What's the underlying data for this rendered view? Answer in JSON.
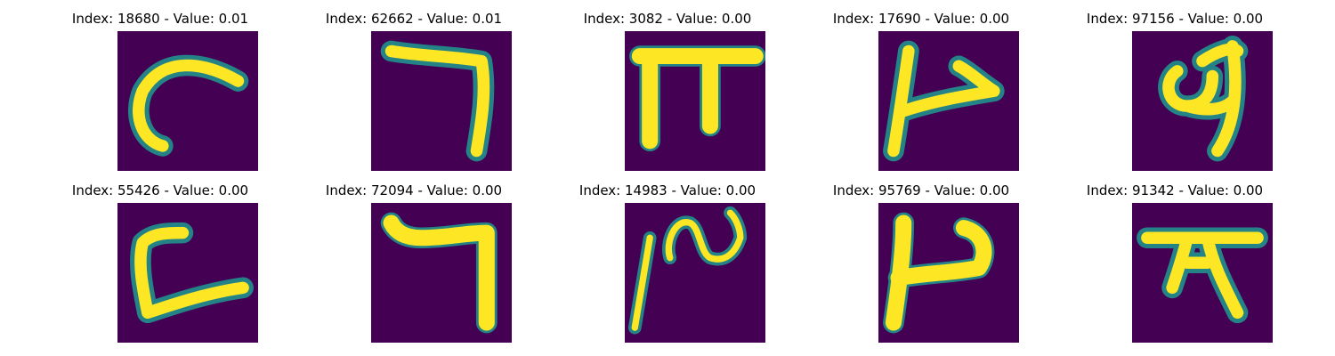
{
  "colors": {
    "background": "#440154",
    "ink_mid": "#21918c",
    "ink_soft": "#5ec962",
    "ink_full": "#fde725"
  },
  "panels": [
    {
      "title": "Index: 18680 - Value: 0.01",
      "glyph": "c-curve-icon"
    },
    {
      "title": "Index: 62662 - Value: 0.01",
      "glyph": "seven-hook-icon"
    },
    {
      "title": "Index: 3082 - Value: 0.00",
      "glyph": "pi-shape-icon"
    },
    {
      "title": "Index: 17690 - Value: 0.00",
      "glyph": "arrow-stroke-icon"
    },
    {
      "title": "Index: 97156 - Value: 0.00",
      "glyph": "loop-stroke-icon"
    },
    {
      "title": "Index: 55426 - Value: 0.00",
      "glyph": "open-box-icon"
    },
    {
      "title": "Index: 72094 - Value: 0.00",
      "glyph": "seven-hook-icon"
    },
    {
      "title": "Index: 14983 - Value: 0.00",
      "glyph": "wave-stroke-icon"
    },
    {
      "title": "Index: 95769 - Value: 0.00",
      "glyph": "hook-stroke-icon"
    },
    {
      "title": "Index: 91342 - Value: 0.00",
      "glyph": "cross-stroke-icon"
    }
  ]
}
